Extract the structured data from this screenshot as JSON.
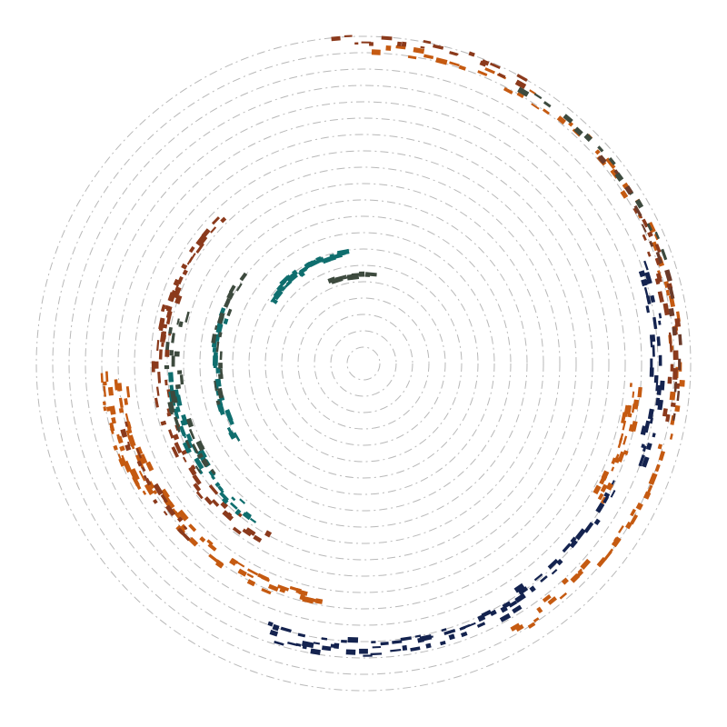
{
  "chart_data": {
    "type": "scatter",
    "subtype": "polar-spiral",
    "title": "",
    "grid": true,
    "legend": "none",
    "ring_count": 20,
    "series": [
      {
        "color": "#c55a11",
        "arcs": [
          {
            "from": -88,
            "to": 28,
            "r": 0.96,
            "n": 55,
            "w": 0.02
          },
          {
            "from": 28,
            "to": 60,
            "r": 0.93,
            "n": 22,
            "w": 0.025
          },
          {
            "from": 5,
            "to": 30,
            "r": 0.83,
            "n": 30,
            "w": 0.02
          },
          {
            "from": 100,
            "to": 175,
            "r": 0.74,
            "n": 60,
            "w": 0.02
          },
          {
            "from": 150,
            "to": 178,
            "r": 0.79,
            "n": 25,
            "w": 0.015
          }
        ]
      },
      {
        "color": "#8b3a1c",
        "arcs": [
          {
            "from": -95,
            "to": -60,
            "r": 0.99,
            "n": 20,
            "w": 0.015
          },
          {
            "from": -30,
            "to": 10,
            "r": 0.95,
            "n": 25,
            "w": 0.02
          },
          {
            "from": 120,
            "to": 200,
            "r": 0.62,
            "n": 45,
            "w": 0.025
          },
          {
            "from": 185,
            "to": 225,
            "r": 0.62,
            "n": 25,
            "w": 0.01
          },
          {
            "from": 135,
            "to": 165,
            "r": 0.75,
            "n": 18,
            "w": 0.015
          }
        ]
      },
      {
        "color": "#14234f",
        "arcs": [
          {
            "from": -20,
            "to": 20,
            "r": 0.9,
            "n": 35,
            "w": 0.02
          },
          {
            "from": 55,
            "to": 110,
            "r": 0.87,
            "n": 55,
            "w": 0.025
          },
          {
            "from": 25,
            "to": 55,
            "r": 0.85,
            "n": 18,
            "w": 0.015
          }
        ]
      },
      {
        "color": "#0f6e6e",
        "arcs": [
          {
            "from": 125,
            "to": 175,
            "r": 0.58,
            "n": 35,
            "w": 0.02
          },
          {
            "from": 215,
            "to": 260,
            "r": 0.34,
            "n": 40,
            "w": 0.01
          },
          {
            "from": 150,
            "to": 200,
            "r": 0.45,
            "n": 25,
            "w": 0.01
          }
        ]
      },
      {
        "color": "#3d4a3e",
        "arcs": [
          {
            "from": 145,
            "to": 195,
            "r": 0.58,
            "n": 28,
            "w": 0.025
          },
          {
            "from": 165,
            "to": 215,
            "r": 0.45,
            "n": 18,
            "w": 0.015
          },
          {
            "from": 250,
            "to": 275,
            "r": 0.27,
            "n": 10,
            "w": 0.005
          },
          {
            "from": -60,
            "to": -20,
            "r": 0.97,
            "n": 14,
            "w": 0.01
          }
        ]
      },
      {
        "color": "#6b3b2a",
        "arcs": [
          {
            "from": -40,
            "to": 10,
            "r": 0.96,
            "n": 16,
            "w": 0.015
          }
        ]
      }
    ]
  }
}
